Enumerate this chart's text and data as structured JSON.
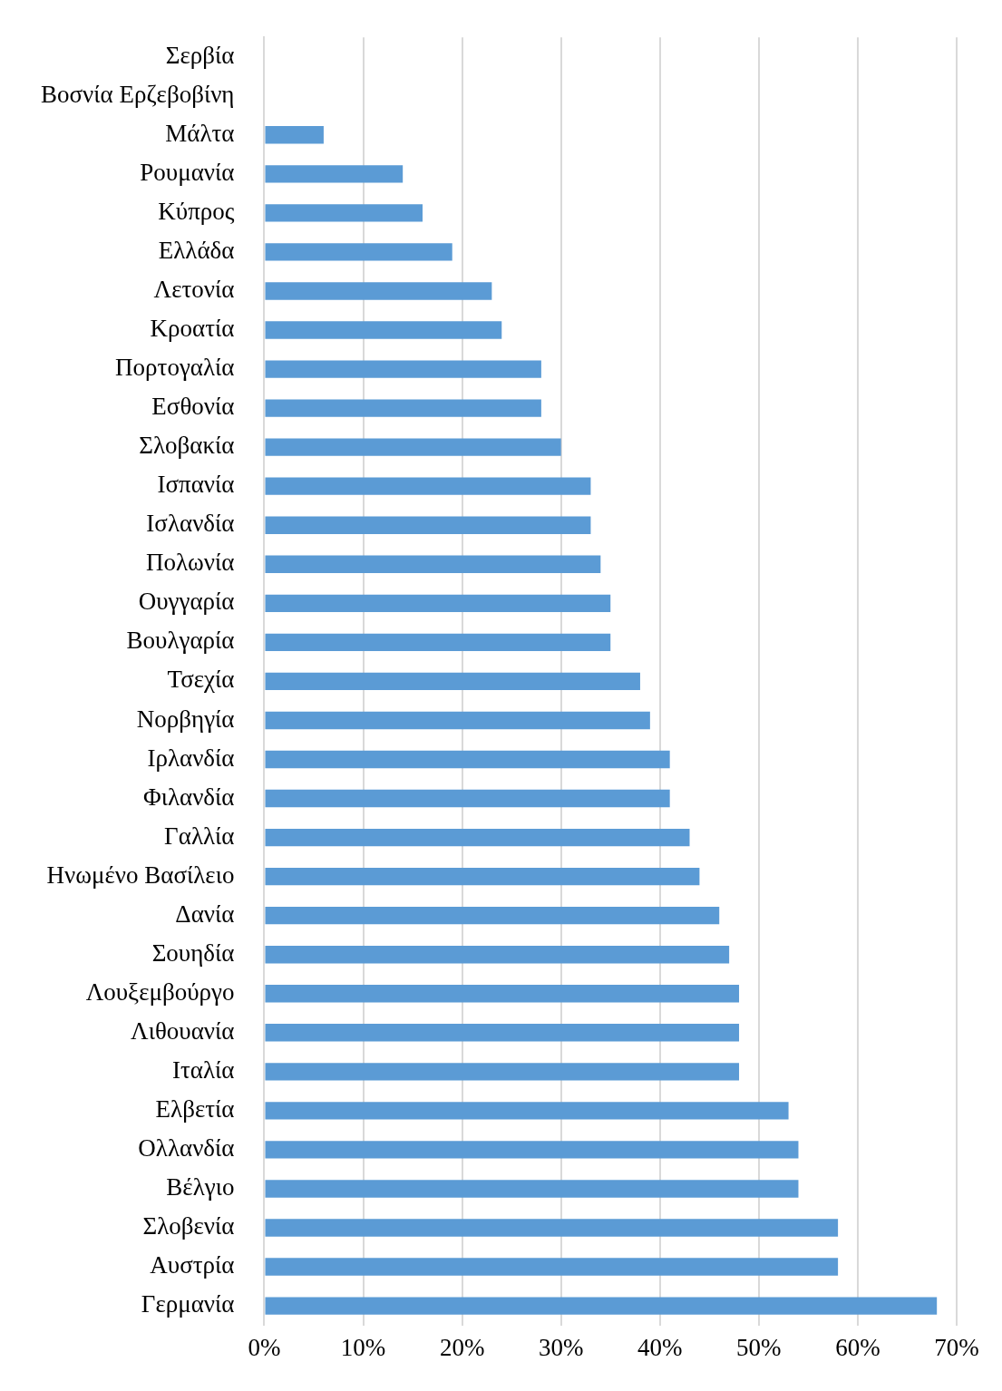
{
  "chart_data": {
    "type": "bar",
    "orientation": "horizontal",
    "categories": [
      "Σερβία",
      "Βοσνία Ερζεβοβίνη",
      "Μάλτα",
      "Ρουμανία",
      "Κύπρος",
      "Ελλάδα",
      "Λετονία",
      "Κροατία",
      "Πορτογαλία",
      "Εσθονία",
      "Σλοβακία",
      "Ισπανία",
      "Ισλανδία",
      "Πολωνία",
      "Ουγγαρία",
      "Βουλγαρία",
      "Τσεχία",
      "Νορβηγία",
      "Ιρλανδία",
      "Φιλανδία",
      "Γαλλία",
      "Ηνωμένο Βασίλειο",
      "Δανία",
      "Σουηδία",
      "Λουξεμβούργο",
      "Λιθουανία",
      "Ιταλία",
      "Ελβετία",
      "Ολλανδία",
      "Βέλγιο",
      "Σλοβενία",
      "Αυστρία",
      "Γερμανία"
    ],
    "values": [
      0,
      0,
      6,
      14,
      16,
      19,
      23,
      24,
      28,
      28,
      30,
      33,
      33,
      34,
      35,
      35,
      38,
      39,
      41,
      41,
      43,
      44,
      46,
      47,
      48,
      48,
      48,
      53,
      54,
      54,
      58,
      58,
      68
    ],
    "color": "#5b9bd5",
    "xlim": [
      0,
      70
    ],
    "xticks": [
      {
        "value": 0,
        "label": "0%"
      },
      {
        "value": 10,
        "label": "10%"
      },
      {
        "value": 20,
        "label": "20%"
      },
      {
        "value": 30,
        "label": "30%"
      },
      {
        "value": 40,
        "label": "40%"
      },
      {
        "value": 50,
        "label": "50%"
      },
      {
        "value": 60,
        "label": "60%"
      },
      {
        "value": 70,
        "label": "70%"
      }
    ],
    "grid": "x",
    "legend": false
  }
}
